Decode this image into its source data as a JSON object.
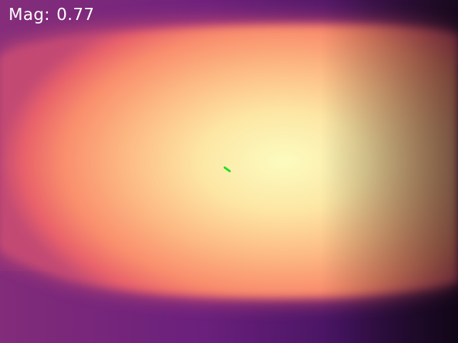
{
  "overlay": {
    "magnitude_label": "Mag:",
    "magnitude_value": "0.77"
  },
  "colors": {
    "colormap": "magma",
    "marker": "#22dd22",
    "text": "#ffffff"
  }
}
